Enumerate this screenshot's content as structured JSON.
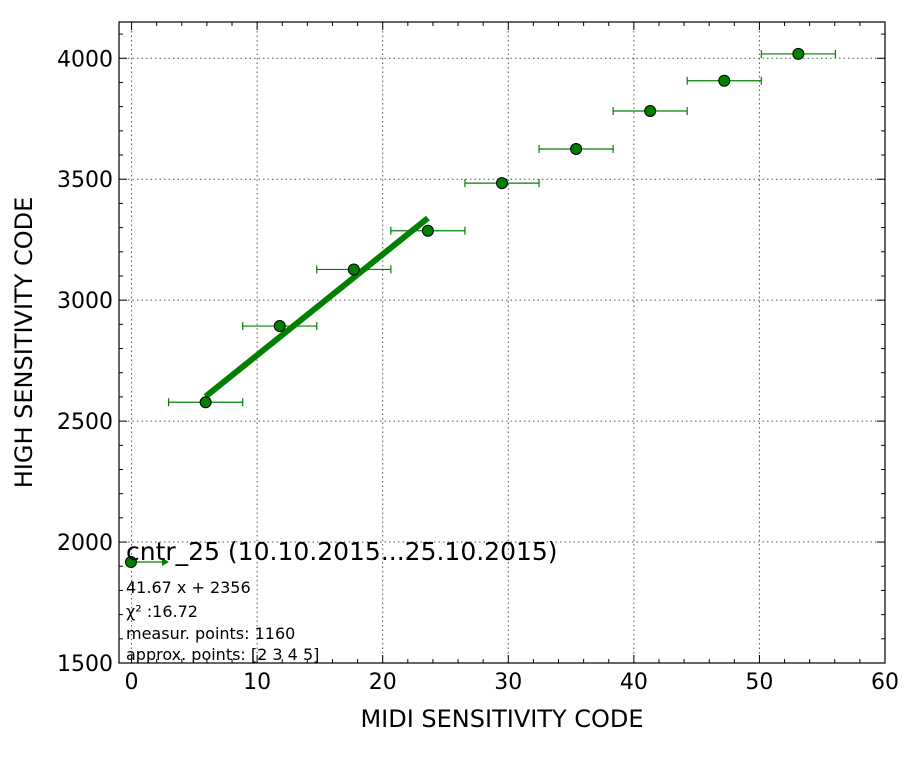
{
  "chart_data": {
    "type": "scatter",
    "xlabel": "MIDI SENSITIVITY CODE",
    "ylabel": "HIGH SENSITIVITY CODE",
    "xlim": [
      -1,
      60
    ],
    "ylim": [
      1500,
      4150
    ],
    "xticks": [
      0,
      10,
      20,
      30,
      40,
      50,
      60
    ],
    "yticks": [
      1500,
      2000,
      2500,
      3000,
      3500,
      4000
    ],
    "grid": true,
    "colors": {
      "points": "#008000",
      "fit": "#008000",
      "errorbar": "#008000"
    },
    "series": [
      {
        "type": "errorbar",
        "points": [
          {
            "x": 5.9,
            "y": 2578,
            "xerr": 2.95
          },
          {
            "x": 11.8,
            "y": 2893,
            "xerr": 2.95
          },
          {
            "x": 17.7,
            "y": 3127,
            "xerr": 2.95
          },
          {
            "x": 23.6,
            "y": 3287,
            "xerr": 2.95
          },
          {
            "x": 29.5,
            "y": 3484,
            "xerr": 2.95
          },
          {
            "x": 35.4,
            "y": 3625,
            "xerr": 2.95
          },
          {
            "x": 41.3,
            "y": 3782,
            "xerr": 2.95
          },
          {
            "x": 47.2,
            "y": 3907,
            "xerr": 2.95
          },
          {
            "x": 53.1,
            "y": 4018,
            "xerr": 2.95
          }
        ]
      },
      {
        "type": "line",
        "slope": 41.67,
        "intercept": 2356,
        "x_range": [
          5.9,
          23.6
        ]
      }
    ],
    "legend": {
      "placement": "lower-left"
    },
    "annotation": {
      "title": "cntr_25 (10.10.2015...25.10.2015)",
      "lines": [
        "41.67 x + 2356",
        "χ² :16.72",
        "measur. points: 1160",
        "approx. points: [2 3 4 5]"
      ]
    }
  }
}
